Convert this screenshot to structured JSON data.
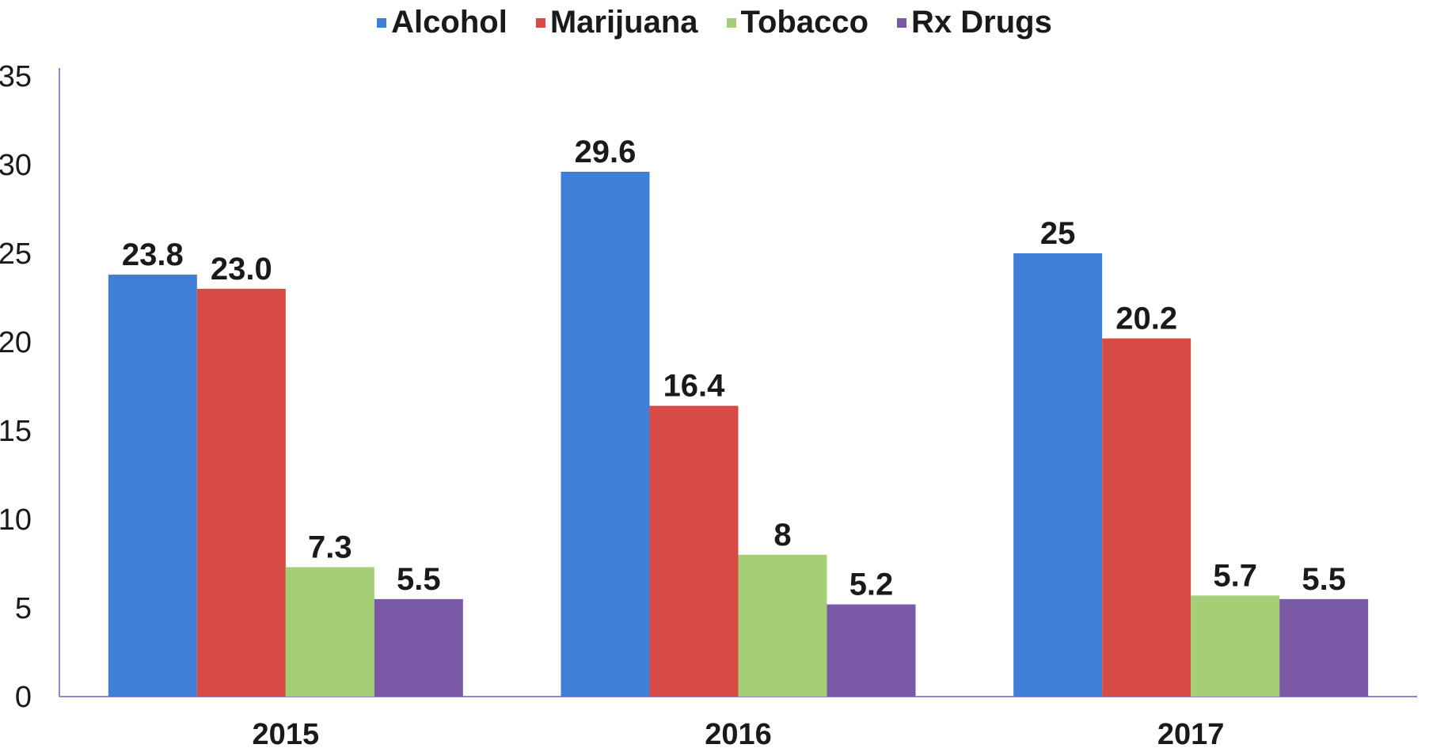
{
  "chart_data": {
    "type": "bar",
    "categories": [
      "2015",
      "2016",
      "2017"
    ],
    "series": [
      {
        "name": "Alcohol",
        "values": [
          23.8,
          29.6,
          25
        ],
        "labels": [
          "23.8",
          "29.6",
          "25"
        ],
        "color": "#3f7fd6"
      },
      {
        "name": "Marijuana",
        "values": [
          23.0,
          16.4,
          20.2
        ],
        "labels": [
          "23.0",
          "16.4",
          "20.2"
        ],
        "color": "#d84a45"
      },
      {
        "name": "Tobacco",
        "values": [
          7.3,
          8,
          5.7
        ],
        "labels": [
          "7.3",
          "8",
          "5.7"
        ],
        "color": "#a4cf76"
      },
      {
        "name": "Rx Drugs",
        "values": [
          5.5,
          5.2,
          5.5
        ],
        "labels": [
          "5.5",
          "5.2",
          "5.5"
        ],
        "color": "#7a5aa6"
      }
    ],
    "yticks": [
      "0",
      "5",
      "10",
      "15",
      "20",
      "25",
      "30",
      "35"
    ],
    "ylim": [
      0,
      35
    ],
    "grid": false,
    "legend_position": "top"
  }
}
